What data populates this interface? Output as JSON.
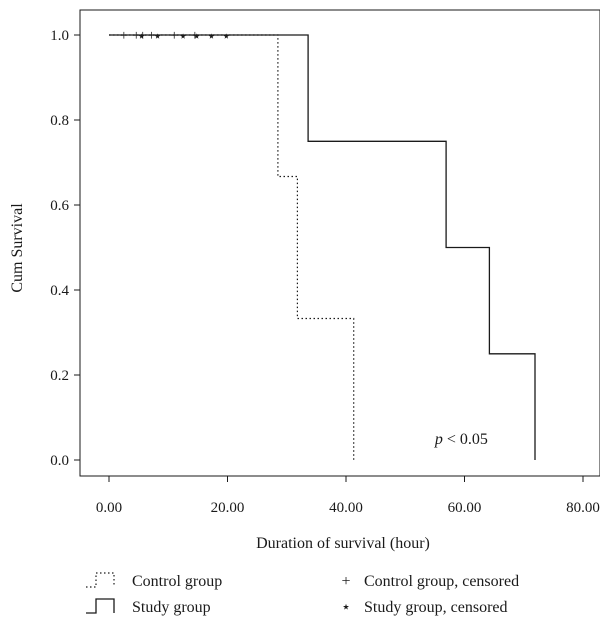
{
  "chart_data": {
    "type": "line",
    "subtype": "kaplan-meier",
    "xlabel": "Duration of survival (hour)",
    "ylabel": "Cum Survival",
    "xlim": [
      0,
      80
    ],
    "ylim": [
      0,
      1
    ],
    "x_ticks": [
      "0.00",
      "20.00",
      "40.00",
      "60.00",
      "80.00"
    ],
    "x_tick_values": [
      0,
      20,
      40,
      60,
      80
    ],
    "y_ticks": [
      "0.0",
      "0.2",
      "0.4",
      "0.6",
      "0.8",
      "1.0"
    ],
    "y_tick_values": [
      0,
      0.2,
      0.4,
      0.6,
      0.8,
      1.0
    ],
    "grid": false,
    "legend_position": "bottom",
    "annotation": {
      "italic": "p",
      "rest": " < 0.05",
      "x": 55,
      "y": 0.05
    },
    "series": [
      {
        "name": "Control group",
        "style": "dotted",
        "steps": [
          [
            0,
            1.0
          ],
          [
            28.5,
            1.0
          ],
          [
            28.5,
            0.667
          ],
          [
            31.8,
            0.667
          ],
          [
            31.8,
            0.333
          ],
          [
            41.3,
            0.333
          ],
          [
            41.3,
            0.0
          ]
        ]
      },
      {
        "name": "Study group",
        "style": "solid",
        "steps": [
          [
            0,
            1.0
          ],
          [
            33.6,
            1.0
          ],
          [
            33.6,
            0.75
          ],
          [
            56.9,
            0.75
          ],
          [
            56.9,
            0.5
          ],
          [
            64.2,
            0.5
          ],
          [
            64.2,
            0.25
          ],
          [
            71.9,
            0.25
          ],
          [
            71.9,
            0.0
          ]
        ]
      }
    ],
    "censored": [
      {
        "name": "Control group, censored",
        "marker": "+",
        "x": [
          2.5,
          4.6,
          5.7,
          7.2,
          11.0,
          14.5
        ],
        "y": 1.0
      },
      {
        "name": "Study group, censored",
        "marker": "⋆",
        "x": [
          5.5,
          8.2,
          12.5,
          14.8,
          17.3,
          19.8
        ],
        "y": 1.0
      }
    ],
    "legend": [
      {
        "label": "Control group",
        "symbol": "dotted-step"
      },
      {
        "label": "Control group, censored",
        "symbol": "+"
      },
      {
        "label": "Study group",
        "symbol": "solid-step"
      },
      {
        "label": "Study group, censored",
        "symbol": "⋆"
      }
    ]
  }
}
